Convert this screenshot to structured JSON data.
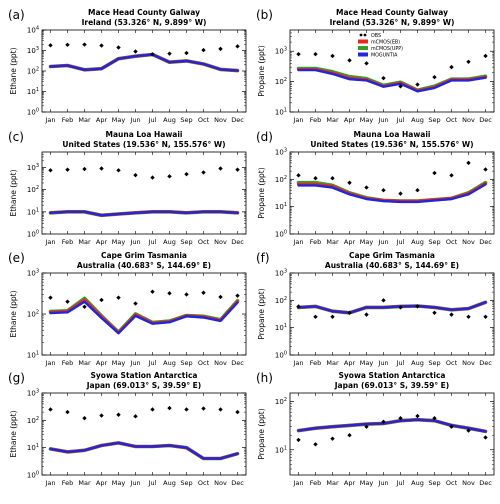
{
  "months": [
    "Jan",
    "Feb",
    "Mar",
    "Apr",
    "May",
    "Jun",
    "Jul",
    "Aug",
    "Sep",
    "Oct",
    "Nov",
    "Dec"
  ],
  "legend": [
    {
      "name": "OBS",
      "color": "#000000",
      "kind": "marker"
    },
    {
      "name": "mCMOS(EB)",
      "color": "#e8261e",
      "kind": "line"
    },
    {
      "name": "mCMOS(UPP)",
      "color": "#3a9a2a",
      "kind": "line"
    },
    {
      "name": "MOGUNTIA",
      "color": "#2424d8",
      "kind": "line"
    }
  ],
  "chart_data": [
    {
      "panel": "(a)",
      "type": "line",
      "title": "Mace Head County Galway",
      "subtitle": "Ireland (53.326° N, 9.899° W)",
      "ylabel": "Ethane (ppt)",
      "ylim": [
        1,
        10000
      ],
      "yscale": "log",
      "series": [
        {
          "name": "OBS",
          "values": [
            1800,
            1900,
            1950,
            1750,
            1400,
            900,
            650,
            700,
            750,
            1050,
            1200,
            1600
          ]
        },
        {
          "name": "mCMOS(EB)",
          "values": [
            165,
            185,
            115,
            130,
            400,
            530,
            640,
            270,
            310,
            220,
            120,
            105
          ]
        },
        {
          "name": "mCMOS(UPP)",
          "values": [
            165,
            185,
            115,
            130,
            400,
            530,
            640,
            270,
            310,
            220,
            120,
            105
          ]
        },
        {
          "name": "MOGUNTIA",
          "values": [
            165,
            185,
            115,
            130,
            400,
            530,
            640,
            270,
            310,
            220,
            120,
            105
          ]
        }
      ]
    },
    {
      "panel": "(b)",
      "type": "line",
      "title": "Mace Head County Galway",
      "subtitle": "Ireland (53.326° N, 9.899° W)",
      "ylabel": "Propane (ppt)",
      "ylim": [
        10,
        5000
      ],
      "yscale": "log",
      "series": [
        {
          "name": "OBS",
          "values": [
            800,
            800,
            700,
            500,
            400,
            130,
            70,
            80,
            140,
            300,
            450,
            700
          ]
        },
        {
          "name": "mCMOS(EB)",
          "values": [
            250,
            250,
            190,
            130,
            115,
            70,
            90,
            50,
            65,
            115,
            115,
            140
          ]
        },
        {
          "name": "mCMOS(UPP)",
          "values": [
            270,
            270,
            210,
            145,
            125,
            75,
            95,
            52,
            70,
            120,
            120,
            150
          ]
        },
        {
          "name": "MOGUNTIA",
          "values": [
            240,
            240,
            180,
            120,
            110,
            68,
            85,
            48,
            62,
            110,
            110,
            135
          ]
        }
      ]
    },
    {
      "panel": "(c)",
      "type": "line",
      "title": "Mauna Loa Hawaii",
      "subtitle": "United States (19.536° N, 155.576° W)",
      "ylabel": "Ethane (ppt)",
      "ylim": [
        1,
        5000
      ],
      "yscale": "log",
      "series": [
        {
          "name": "OBS",
          "values": [
            750,
            800,
            850,
            900,
            750,
            450,
            350,
            400,
            500,
            600,
            900,
            800
          ]
        },
        {
          "name": "mCMOS(EB)",
          "values": [
            9,
            10,
            10,
            7,
            8,
            9,
            10,
            10,
            9,
            10,
            10,
            9
          ]
        },
        {
          "name": "mCMOS(UPP)",
          "values": [
            9,
            10,
            10,
            7,
            8,
            9,
            10,
            10,
            9,
            10,
            10,
            9
          ]
        },
        {
          "name": "MOGUNTIA",
          "values": [
            9,
            10,
            10,
            7,
            8,
            9,
            10,
            10,
            9,
            10,
            10,
            9
          ]
        }
      ]
    },
    {
      "panel": "(d)",
      "type": "line",
      "title": "Mauna Loa Hawaii",
      "subtitle": "United States (19.536° N, 155.576° W)",
      "ylabel": "Propane (ppt)",
      "ylim": [
        1,
        1000
      ],
      "yscale": "log",
      "series": [
        {
          "name": "OBS",
          "values": [
            140,
            110,
            110,
            75,
            50,
            40,
            30,
            40,
            170,
            140,
            400,
            230
          ]
        },
        {
          "name": "mCMOS(EB)",
          "values": [
            65,
            65,
            55,
            30,
            20,
            17,
            16,
            16,
            18,
            20,
            30,
            70
          ]
        },
        {
          "name": "mCMOS(UPP)",
          "values": [
            75,
            75,
            60,
            32,
            21,
            17,
            16,
            16,
            18,
            20,
            32,
            75
          ]
        },
        {
          "name": "MOGUNTIA",
          "values": [
            60,
            60,
            50,
            28,
            19,
            16,
            15,
            15,
            17,
            19,
            28,
            65
          ]
        }
      ]
    },
    {
      "panel": "(e)",
      "type": "line",
      "title": "Cape Grim Tasmania",
      "subtitle": "Australia (40.683° S, 144.69° E)",
      "ylabel": "Ethane (ppt)",
      "ylim": [
        10,
        1000
      ],
      "yscale": "log",
      "series": [
        {
          "name": "OBS",
          "values": [
            250,
            200,
            150,
            220,
            250,
            180,
            350,
            320,
            300,
            330,
            260,
            280
          ]
        },
        {
          "name": "mCMOS(EB)",
          "values": [
            110,
            115,
            220,
            85,
            35,
            95,
            60,
            65,
            90,
            85,
            70,
            200
          ]
        },
        {
          "name": "mCMOS(UPP)",
          "values": [
            115,
            120,
            240,
            90,
            36,
            100,
            62,
            67,
            92,
            88,
            72,
            210
          ]
        },
        {
          "name": "MOGUNTIA",
          "values": [
            105,
            110,
            200,
            80,
            34,
            90,
            58,
            63,
            88,
            82,
            68,
            190
          ]
        }
      ]
    },
    {
      "panel": "(f)",
      "type": "line",
      "title": "Cape Grim Tasmania",
      "subtitle": "Australia (40.683° S, 144.69° E)",
      "ylabel": "Propane (ppt)",
      "ylim": [
        1,
        1000
      ],
      "yscale": "log",
      "series": [
        {
          "name": "OBS",
          "values": [
            60,
            25,
            25,
            35,
            30,
            100,
            55,
            60,
            35,
            30,
            25,
            25
          ]
        },
        {
          "name": "mCMOS(EB)",
          "values": [
            55,
            60,
            40,
            35,
            55,
            55,
            60,
            62,
            55,
            45,
            50,
            85
          ]
        },
        {
          "name": "mCMOS(UPP)",
          "values": [
            55,
            60,
            40,
            35,
            55,
            55,
            60,
            62,
            55,
            45,
            50,
            85
          ]
        },
        {
          "name": "MOGUNTIA",
          "values": [
            55,
            60,
            40,
            35,
            55,
            55,
            60,
            62,
            55,
            45,
            50,
            85
          ]
        }
      ]
    },
    {
      "panel": "(g)",
      "type": "line",
      "title": "Syowa Station Antarctica",
      "subtitle": "Japan (69.013° S, 39.59° E)",
      "ylabel": "Ethane (ppt)",
      "ylim": [
        1,
        1000
      ],
      "yscale": "log",
      "series": [
        {
          "name": "OBS",
          "values": [
            250,
            200,
            120,
            150,
            160,
            140,
            250,
            280,
            250,
            270,
            250,
            200
          ]
        },
        {
          "name": "mCMOS(EB)",
          "values": [
            9,
            7,
            8,
            12,
            15,
            11,
            11,
            12,
            10,
            4,
            4,
            6
          ]
        },
        {
          "name": "mCMOS(UPP)",
          "values": [
            9,
            7,
            8,
            12,
            15,
            11,
            11,
            12,
            10,
            4,
            4,
            6
          ]
        },
        {
          "name": "MOGUNTIA",
          "values": [
            9,
            7,
            8,
            12,
            15,
            11,
            11,
            12,
            10,
            4,
            4,
            6
          ]
        }
      ]
    },
    {
      "panel": "(h)",
      "type": "line",
      "title": "Syowa Station Antarctica",
      "subtitle": "Japan (69.013° S, 39.59° E)",
      "ylabel": "Propane (ppt)",
      "ylim": [
        3,
        150
      ],
      "yscale": "log",
      "series": [
        {
          "name": "OBS",
          "values": [
            16,
            13,
            17,
            20,
            30,
            38,
            45,
            50,
            45,
            30,
            25,
            18
          ]
        },
        {
          "name": "mCMOS(EB)",
          "values": [
            25,
            28,
            30,
            32,
            34,
            35,
            40,
            42,
            40,
            32,
            28,
            24
          ]
        },
        {
          "name": "mCMOS(UPP)",
          "values": [
            25,
            28,
            30,
            32,
            34,
            35,
            40,
            42,
            40,
            32,
            28,
            24
          ]
        },
        {
          "name": "MOGUNTIA",
          "values": [
            25,
            28,
            30,
            32,
            34,
            35,
            40,
            42,
            40,
            32,
            28,
            24
          ]
        }
      ]
    }
  ]
}
